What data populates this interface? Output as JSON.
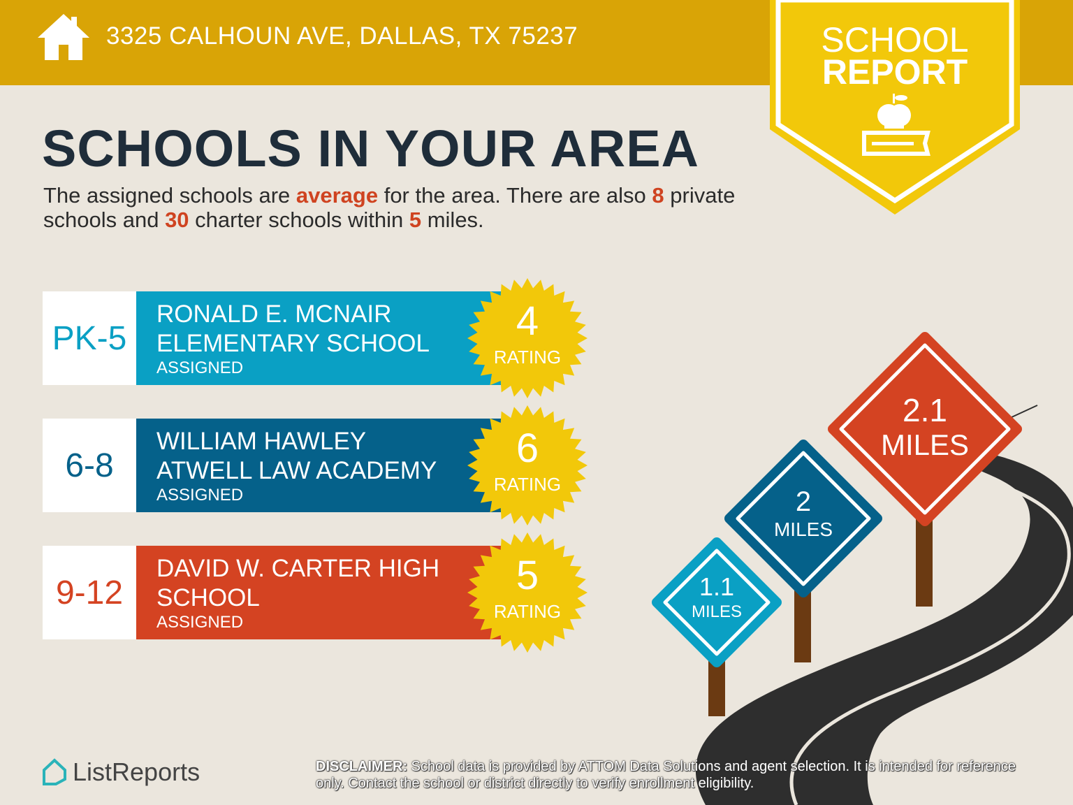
{
  "header": {
    "address": "3325 CALHOUN AVE, DALLAS, TX 75237",
    "icon": "house-icon"
  },
  "badge": {
    "line1": "SCHOOL",
    "line2": "REPORT",
    "icon": "apple-on-book-icon"
  },
  "title": "SCHOOLS IN YOUR AREA",
  "intro": {
    "p1": "The assigned schools are ",
    "quality": "average",
    "p2": " for the area. There are also ",
    "private_count": "8",
    "p3": " private schools and ",
    "charter_count": "30",
    "p4": " charter schools within ",
    "radius": "5",
    "p5": " miles."
  },
  "schools": [
    {
      "grades": "PK-5",
      "name1": "RONALD E. MCNAIR",
      "name2": "ELEMENTARY SCHOOL",
      "status": "ASSIGNED",
      "rating": "4",
      "rating_label": "RATING",
      "color": "#0aa0c4",
      "grade_color": "#0aa0c4"
    },
    {
      "grades": "6-8",
      "name1": "WILLIAM HAWLEY",
      "name2": "ATWELL LAW ACADEMY",
      "status": "ASSIGNED",
      "rating": "6",
      "rating_label": "RATING",
      "color": "#05618a",
      "grade_color": "#05618a"
    },
    {
      "grades": "9-12",
      "name1": "DAVID W. CARTER HIGH",
      "name2": "SCHOOL",
      "status": "ASSIGNED",
      "rating": "5",
      "rating_label": "RATING",
      "color": "#d44322",
      "grade_color": "#d44322"
    }
  ],
  "signs": [
    {
      "distance": "2.1",
      "unit": "MILES",
      "color": "#d44322"
    },
    {
      "distance": "2",
      "unit": "MILES",
      "color": "#05618a"
    },
    {
      "distance": "1.1",
      "unit": "MILES",
      "color": "#0aa0c4"
    }
  ],
  "footer": {
    "brand": "ListReports",
    "disclaimer_label": "DISCLAIMER:",
    "disclaimer": " School data is provided by ATTOM Data Solutions and agent selection. It is intended for reference only. Contact the school or district directly to verify enrollment eligibility."
  },
  "colors": {
    "header": "#d9a406",
    "badge": "#f2c80a",
    "title": "#1f2d3a",
    "highlight": "#cf4320"
  }
}
